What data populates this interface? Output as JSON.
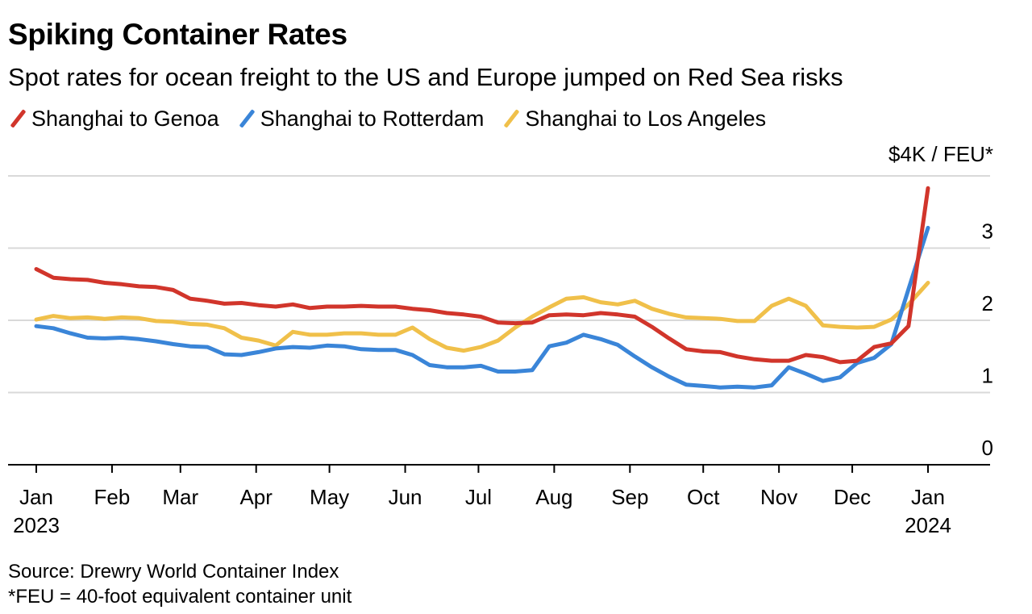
{
  "title": "Spiking Container Rates",
  "subtitle": "Spot rates for ocean freight to the US and Europe jumped on Red Sea risks",
  "legend": [
    {
      "label": "Shanghai to Genoa",
      "color": "#d1352b"
    },
    {
      "label": "Shanghai to Rotterdam",
      "color": "#3a85d8"
    },
    {
      "label": "Shanghai to Los Angeles",
      "color": "#f0c04a"
    }
  ],
  "source": {
    "line1": "Source: Drewry World Container Index",
    "line2": "*FEU = 40-foot equivalent container unit"
  },
  "chart_data": {
    "type": "line",
    "title": "Spiking Container Rates",
    "ylabel": "$4K / FEU*",
    "ylim": [
      0,
      4
    ],
    "yticks": [
      {
        "value": 0,
        "label": "0"
      },
      {
        "value": 1,
        "label": "1"
      },
      {
        "value": 2,
        "label": "2"
      },
      {
        "value": 3,
        "label": "3"
      },
      {
        "value": 4,
        "label": "$4K / FEU*"
      }
    ],
    "xlim": [
      "2023-01-01",
      "2024-01-18"
    ],
    "xticks": [
      {
        "date": "2023-01-01",
        "label": "Jan",
        "sub": "2023"
      },
      {
        "date": "2023-02-01",
        "label": "Feb",
        "sub": ""
      },
      {
        "date": "2023-03-01",
        "label": "Mar",
        "sub": ""
      },
      {
        "date": "2023-04-01",
        "label": "Apr",
        "sub": ""
      },
      {
        "date": "2023-05-01",
        "label": "May",
        "sub": ""
      },
      {
        "date": "2023-06-01",
        "label": "Jun",
        "sub": ""
      },
      {
        "date": "2023-07-01",
        "label": "Jul",
        "sub": ""
      },
      {
        "date": "2023-08-01",
        "label": "Aug",
        "sub": ""
      },
      {
        "date": "2023-09-01",
        "label": "Sep",
        "sub": ""
      },
      {
        "date": "2023-10-01",
        "label": "Oct",
        "sub": ""
      },
      {
        "date": "2023-11-01",
        "label": "Nov",
        "sub": ""
      },
      {
        "date": "2023-12-01",
        "label": "Dec",
        "sub": ""
      },
      {
        "date": "2024-01-01",
        "label": "Jan",
        "sub": "2024"
      }
    ],
    "grid": true,
    "legend_position": "top-left",
    "series": [
      {
        "name": "Shanghai to Genoa",
        "color": "#d1352b",
        "points": [
          [
            "2023-01-01",
            2.71
          ],
          [
            "2023-01-08",
            2.59
          ],
          [
            "2023-01-15",
            2.57
          ],
          [
            "2023-01-22",
            2.56
          ],
          [
            "2023-01-29",
            2.52
          ],
          [
            "2023-02-05",
            2.5
          ],
          [
            "2023-02-12",
            2.47
          ],
          [
            "2023-02-19",
            2.46
          ],
          [
            "2023-02-26",
            2.42
          ],
          [
            "2023-03-05",
            2.3
          ],
          [
            "2023-03-12",
            2.27
          ],
          [
            "2023-03-19",
            2.23
          ],
          [
            "2023-03-26",
            2.24
          ],
          [
            "2023-04-02",
            2.21
          ],
          [
            "2023-04-09",
            2.19
          ],
          [
            "2023-04-16",
            2.22
          ],
          [
            "2023-04-23",
            2.17
          ],
          [
            "2023-04-30",
            2.19
          ],
          [
            "2023-05-07",
            2.19
          ],
          [
            "2023-05-14",
            2.2
          ],
          [
            "2023-05-21",
            2.19
          ],
          [
            "2023-05-28",
            2.19
          ],
          [
            "2023-06-04",
            2.16
          ],
          [
            "2023-06-11",
            2.14
          ],
          [
            "2023-06-18",
            2.1
          ],
          [
            "2023-06-25",
            2.08
          ],
          [
            "2023-07-02",
            2.05
          ],
          [
            "2023-07-09",
            1.97
          ],
          [
            "2023-07-16",
            1.96
          ],
          [
            "2023-07-23",
            1.97
          ],
          [
            "2023-07-30",
            2.07
          ],
          [
            "2023-08-06",
            2.08
          ],
          [
            "2023-08-13",
            2.07
          ],
          [
            "2023-08-20",
            2.1
          ],
          [
            "2023-08-27",
            2.08
          ],
          [
            "2023-09-03",
            2.05
          ],
          [
            "2023-09-10",
            1.91
          ],
          [
            "2023-09-17",
            1.75
          ],
          [
            "2023-09-24",
            1.6
          ],
          [
            "2023-10-01",
            1.57
          ],
          [
            "2023-10-08",
            1.56
          ],
          [
            "2023-10-15",
            1.5
          ],
          [
            "2023-10-22",
            1.46
          ],
          [
            "2023-10-29",
            1.44
          ],
          [
            "2023-11-05",
            1.44
          ],
          [
            "2023-11-12",
            1.52
          ],
          [
            "2023-11-19",
            1.49
          ],
          [
            "2023-11-26",
            1.42
          ],
          [
            "2023-12-03",
            1.44
          ],
          [
            "2023-12-10",
            1.63
          ],
          [
            "2023-12-17",
            1.68
          ],
          [
            "2023-12-24",
            1.92
          ],
          [
            "2024-01-01",
            3.83
          ]
        ]
      },
      {
        "name": "Shanghai to Rotterdam",
        "color": "#3a85d8",
        "points": [
          [
            "2023-01-01",
            1.92
          ],
          [
            "2023-01-08",
            1.89
          ],
          [
            "2023-01-15",
            1.82
          ],
          [
            "2023-01-22",
            1.76
          ],
          [
            "2023-01-29",
            1.75
          ],
          [
            "2023-02-05",
            1.76
          ],
          [
            "2023-02-12",
            1.74
          ],
          [
            "2023-02-19",
            1.71
          ],
          [
            "2023-02-26",
            1.67
          ],
          [
            "2023-03-05",
            1.64
          ],
          [
            "2023-03-12",
            1.63
          ],
          [
            "2023-03-19",
            1.53
          ],
          [
            "2023-03-26",
            1.52
          ],
          [
            "2023-04-02",
            1.56
          ],
          [
            "2023-04-09",
            1.61
          ],
          [
            "2023-04-16",
            1.63
          ],
          [
            "2023-04-23",
            1.62
          ],
          [
            "2023-04-30",
            1.65
          ],
          [
            "2023-05-07",
            1.64
          ],
          [
            "2023-05-14",
            1.6
          ],
          [
            "2023-05-21",
            1.59
          ],
          [
            "2023-05-28",
            1.59
          ],
          [
            "2023-06-04",
            1.52
          ],
          [
            "2023-06-11",
            1.38
          ],
          [
            "2023-06-18",
            1.35
          ],
          [
            "2023-06-25",
            1.35
          ],
          [
            "2023-07-02",
            1.37
          ],
          [
            "2023-07-09",
            1.29
          ],
          [
            "2023-07-16",
            1.29
          ],
          [
            "2023-07-23",
            1.31
          ],
          [
            "2023-07-30",
            1.64
          ],
          [
            "2023-08-06",
            1.69
          ],
          [
            "2023-08-13",
            1.8
          ],
          [
            "2023-08-20",
            1.74
          ],
          [
            "2023-08-27",
            1.66
          ],
          [
            "2023-09-03",
            1.5
          ],
          [
            "2023-09-10",
            1.35
          ],
          [
            "2023-09-17",
            1.22
          ],
          [
            "2023-09-24",
            1.11
          ],
          [
            "2023-10-01",
            1.09
          ],
          [
            "2023-10-08",
            1.07
          ],
          [
            "2023-10-15",
            1.08
          ],
          [
            "2023-10-22",
            1.07
          ],
          [
            "2023-10-29",
            1.1
          ],
          [
            "2023-11-05",
            1.35
          ],
          [
            "2023-11-12",
            1.26
          ],
          [
            "2023-11-19",
            1.16
          ],
          [
            "2023-11-26",
            1.21
          ],
          [
            "2023-12-03",
            1.41
          ],
          [
            "2023-12-10",
            1.48
          ],
          [
            "2023-12-17",
            1.67
          ],
          [
            "2023-12-24",
            2.43
          ],
          [
            "2024-01-01",
            3.28
          ]
        ]
      },
      {
        "name": "Shanghai to Los Angeles",
        "color": "#f0c04a",
        "points": [
          [
            "2023-01-01",
            2.01
          ],
          [
            "2023-01-08",
            2.06
          ],
          [
            "2023-01-15",
            2.03
          ],
          [
            "2023-01-22",
            2.04
          ],
          [
            "2023-01-29",
            2.02
          ],
          [
            "2023-02-05",
            2.04
          ],
          [
            "2023-02-12",
            2.03
          ],
          [
            "2023-02-19",
            1.99
          ],
          [
            "2023-02-26",
            1.98
          ],
          [
            "2023-03-05",
            1.95
          ],
          [
            "2023-03-12",
            1.94
          ],
          [
            "2023-03-19",
            1.89
          ],
          [
            "2023-03-26",
            1.76
          ],
          [
            "2023-04-02",
            1.72
          ],
          [
            "2023-04-09",
            1.65
          ],
          [
            "2023-04-16",
            1.84
          ],
          [
            "2023-04-23",
            1.8
          ],
          [
            "2023-04-30",
            1.8
          ],
          [
            "2023-05-07",
            1.82
          ],
          [
            "2023-05-14",
            1.82
          ],
          [
            "2023-05-21",
            1.8
          ],
          [
            "2023-05-28",
            1.8
          ],
          [
            "2023-06-04",
            1.9
          ],
          [
            "2023-06-11",
            1.74
          ],
          [
            "2023-06-18",
            1.62
          ],
          [
            "2023-06-25",
            1.58
          ],
          [
            "2023-07-02",
            1.63
          ],
          [
            "2023-07-09",
            1.72
          ],
          [
            "2023-07-16",
            1.9
          ],
          [
            "2023-07-23",
            2.05
          ],
          [
            "2023-07-30",
            2.18
          ],
          [
            "2023-08-06",
            2.3
          ],
          [
            "2023-08-13",
            2.32
          ],
          [
            "2023-08-20",
            2.25
          ],
          [
            "2023-08-27",
            2.22
          ],
          [
            "2023-09-03",
            2.27
          ],
          [
            "2023-09-10",
            2.16
          ],
          [
            "2023-09-17",
            2.09
          ],
          [
            "2023-09-24",
            2.04
          ],
          [
            "2023-10-01",
            2.03
          ],
          [
            "2023-10-08",
            2.02
          ],
          [
            "2023-10-15",
            1.99
          ],
          [
            "2023-10-22",
            1.99
          ],
          [
            "2023-10-29",
            2.2
          ],
          [
            "2023-11-05",
            2.3
          ],
          [
            "2023-11-12",
            2.2
          ],
          [
            "2023-11-19",
            1.93
          ],
          [
            "2023-11-26",
            1.91
          ],
          [
            "2023-12-03",
            1.9
          ],
          [
            "2023-12-10",
            1.91
          ],
          [
            "2023-12-17",
            2.01
          ],
          [
            "2023-12-24",
            2.22
          ],
          [
            "2024-01-01",
            2.52
          ]
        ]
      }
    ]
  }
}
